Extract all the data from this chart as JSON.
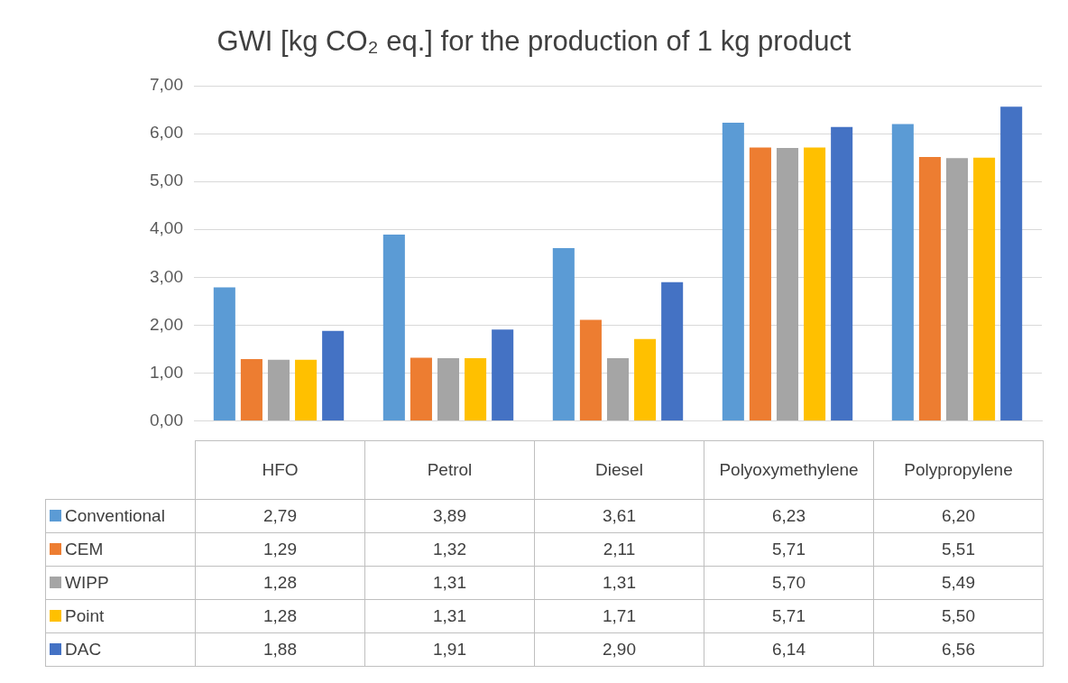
{
  "chart_data": {
    "type": "bar",
    "title": "GWI [kg CO₂ eq.] for the production of 1 kg product",
    "categories": [
      "HFO",
      "Petrol",
      "Diesel",
      "Polyoxymethylene",
      "Polypropylene"
    ],
    "series": [
      {
        "name": "Conventional",
        "color": "#5b9bd5",
        "values": [
          2.79,
          3.89,
          3.61,
          6.23,
          6.2
        ],
        "value_labels": [
          "2,79",
          "3,89",
          "3,61",
          "6,23",
          "6,20"
        ]
      },
      {
        "name": "CEM",
        "color": "#ed7d31",
        "values": [
          1.29,
          1.32,
          2.11,
          5.71,
          5.51
        ],
        "value_labels": [
          "1,29",
          "1,32",
          "2,11",
          "5,71",
          "5,51"
        ]
      },
      {
        "name": "WIPP",
        "color": "#a5a5a5",
        "values": [
          1.28,
          1.31,
          1.31,
          5.7,
          5.49
        ],
        "value_labels": [
          "1,28",
          "1,31",
          "1,31",
          "5,70",
          "5,49"
        ]
      },
      {
        "name": "Point",
        "color": "#ffc000",
        "values": [
          1.28,
          1.31,
          1.71,
          5.71,
          5.5
        ],
        "value_labels": [
          "1,28",
          "1,31",
          "1,71",
          "5,71",
          "5,50"
        ]
      },
      {
        "name": "DAC",
        "color": "#4472c4",
        "values": [
          1.88,
          1.91,
          2.9,
          6.14,
          6.56
        ],
        "value_labels": [
          "1,88",
          "1,91",
          "2,90",
          "6,14",
          "6,56"
        ]
      }
    ],
    "ylim": [
      0,
      7
    ],
    "yticks": [
      {
        "value": 0,
        "label": "0,00"
      },
      {
        "value": 1,
        "label": "1,00"
      },
      {
        "value": 2,
        "label": "2,00"
      },
      {
        "value": 3,
        "label": "3,00"
      },
      {
        "value": 4,
        "label": "4,00"
      },
      {
        "value": 5,
        "label": "5,00"
      },
      {
        "value": 6,
        "label": "6,00"
      },
      {
        "value": 7,
        "label": "7,00"
      }
    ],
    "grid": "y",
    "legend": "bottom"
  }
}
